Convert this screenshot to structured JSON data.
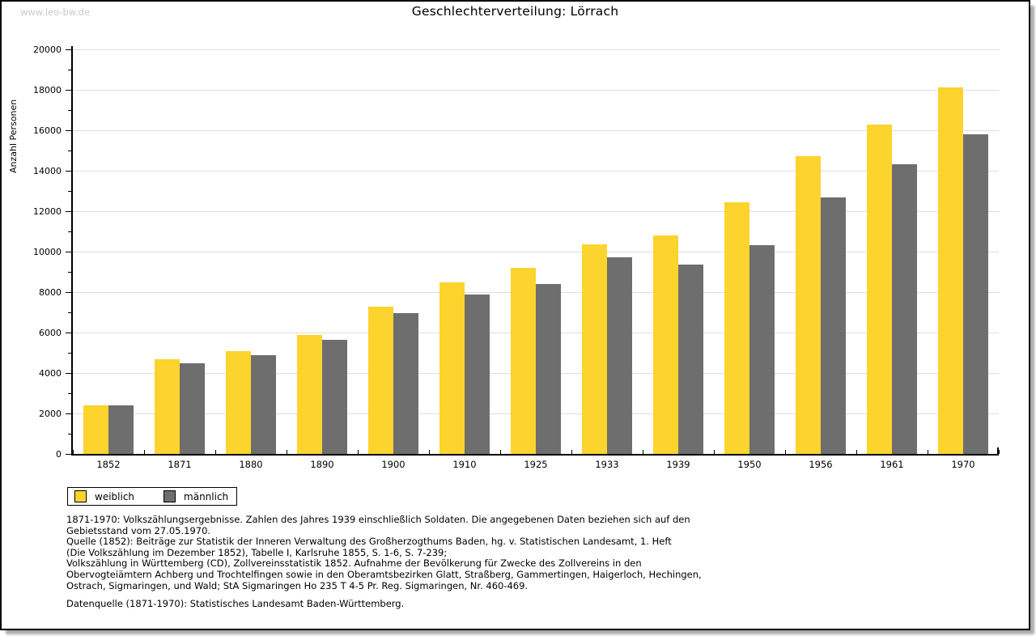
{
  "window": {
    "watermark": "www.leo-bw.de"
  },
  "chart_data": {
    "type": "bar",
    "title": "Geschlechterverteilung: Lörrach",
    "xlabel": "",
    "ylabel": "Anzahl Personen",
    "categories": [
      "1852",
      "1871",
      "1880",
      "1890",
      "1900",
      "1910",
      "1925",
      "1933",
      "1939",
      "1950",
      "1956",
      "1961",
      "1970"
    ],
    "series": [
      {
        "name": "weiblich",
        "color": "#FDD32D",
        "values": [
          2400,
          4660,
          5090,
          5870,
          7270,
          8470,
          9210,
          10350,
          10800,
          12440,
          14700,
          16280,
          18130
        ]
      },
      {
        "name": "männlich",
        "color": "#6E6E6E",
        "values": [
          2400,
          4490,
          4880,
          5650,
          6950,
          7880,
          8390,
          9720,
          9350,
          10300,
          12660,
          14320,
          15810
        ]
      }
    ],
    "ylim": [
      0,
      20000
    ],
    "ytick_step": 2000,
    "yminor_step": 1000,
    "grid": true,
    "legend_position": "bottom-left"
  },
  "footnotes": {
    "lines": [
      "1871-1970: Volkszählungsergebnisse. Zahlen des Jahres 1939 einschließlich Soldaten. Die angegebenen Daten beziehen sich auf den",
      "Gebietsstand vom 27.05.1970.",
      "Quelle (1852): Beiträge zur Statistik der Inneren Verwaltung des Großherzogthums Baden, hg. v. Statistischen Landesamt, 1. Heft",
      "(Die Volkszählung im Dezember 1852), Tabelle I, Karlsruhe 1855, S. 1-6, S. 7-239;",
      "Volkszählung in Württemberg (CD), Zollvereinsstatistik 1852. Aufnahme der Bevölkerung für Zwecke des Zollvereins in den",
      "Obervogteiämtern Achberg und Trochtelfingen sowie in den Oberamtsbezirken Glatt, Straßberg, Gammertingen, Haigerloch, Hechingen,",
      "Ostrach, Sigmaringen, und Wald; StA Sigmaringen Ho 235 T 4-5 Pr. Reg. Sigmaringen, Nr. 460-469."
    ],
    "datenquelle": "Datenquelle (1871-1970): Statistisches Landesamt Baden-Württemberg."
  },
  "colors": {
    "grid": "#dedede",
    "axis": "#000000",
    "watermark": "#c9c9c9",
    "background": "#ffffff"
  }
}
